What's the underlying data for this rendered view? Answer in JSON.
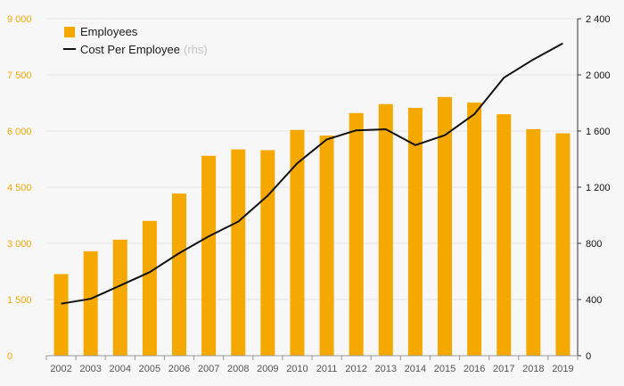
{
  "chart_data": {
    "type": "bar+line",
    "categories": [
      "2002",
      "2003",
      "2004",
      "2005",
      "2006",
      "2007",
      "2008",
      "2009",
      "2010",
      "2011",
      "2012",
      "2013",
      "2014",
      "2015",
      "2016",
      "2017",
      "2018",
      "2019"
    ],
    "series": [
      {
        "name": "Employees",
        "type": "bar",
        "axis": "left",
        "values": [
          2180,
          2790,
          3100,
          3600,
          4330,
          5340,
          5510,
          5490,
          6030,
          5880,
          6480,
          6720,
          6620,
          6910,
          6760,
          6450,
          6050,
          5940
        ]
      },
      {
        "name": "Cost Per Employee",
        "type": "line",
        "axis": "right",
        "values": [
          370,
          405,
          500,
          595,
          730,
          850,
          955,
          1140,
          1370,
          1540,
          1605,
          1613,
          1500,
          1570,
          1720,
          1980,
          2110,
          2225
        ]
      }
    ],
    "left_axis": {
      "ylim": [
        0,
        9000
      ],
      "ticks": [
        "0",
        "1 500",
        "3 000",
        "4 500",
        "6 000",
        "7 500",
        "9 000"
      ]
    },
    "right_axis": {
      "ylim": [
        0,
        2400
      ],
      "ticks": [
        "0",
        "400",
        "800",
        "1 200",
        "1 600",
        "2 000",
        "2 400"
      ]
    },
    "legend": {
      "position": "top-left",
      "items": [
        {
          "label": "Employees",
          "suffix": ""
        },
        {
          "label": "Cost Per Employee",
          "suffix": "(rhs)"
        }
      ]
    },
    "colors": {
      "bar": "#f5a800",
      "line": "#111111",
      "left_ticks": "#f5a800",
      "right_ticks": "#111111"
    }
  }
}
